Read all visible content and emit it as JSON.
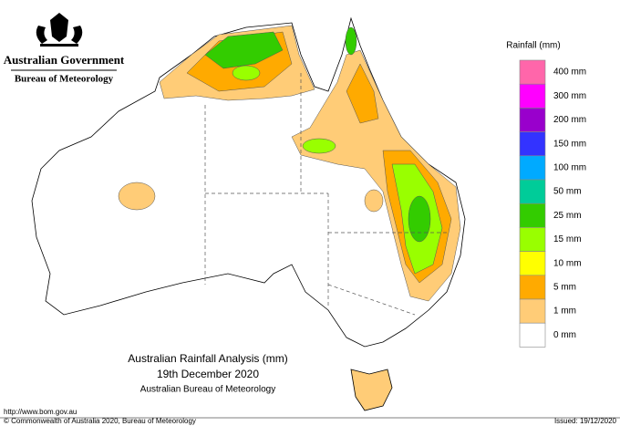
{
  "header": {
    "government": "Australian Government",
    "agency": "Bureau of Meteorology"
  },
  "legend": {
    "title": "Rainfall (mm)",
    "colors": [
      "#ff66aa",
      "#ff00ff",
      "#9900cc",
      "#3333ff",
      "#00aaff",
      "#00cc99",
      "#33cc00",
      "#99ff00",
      "#ffff00",
      "#ffaa00",
      "#ffcc77",
      "#ffffff"
    ],
    "labels": [
      "400 mm",
      "300 mm",
      "200 mm",
      "150 mm",
      "100 mm",
      "50 mm",
      "25 mm",
      "15 mm",
      "10 mm",
      "5 mm",
      "1 mm",
      "0 mm"
    ]
  },
  "title": {
    "line1": "Australian Rainfall Analysis (mm)",
    "line2": "19th December 2020",
    "line3": "Australian Bureau of Meteorology"
  },
  "footer": {
    "url": "http://www.bom.gov.au",
    "copyright": "© Commonwealth of Australia 2020, Bureau of Meteorology",
    "issued": "Issued: 19/12/2020"
  }
}
